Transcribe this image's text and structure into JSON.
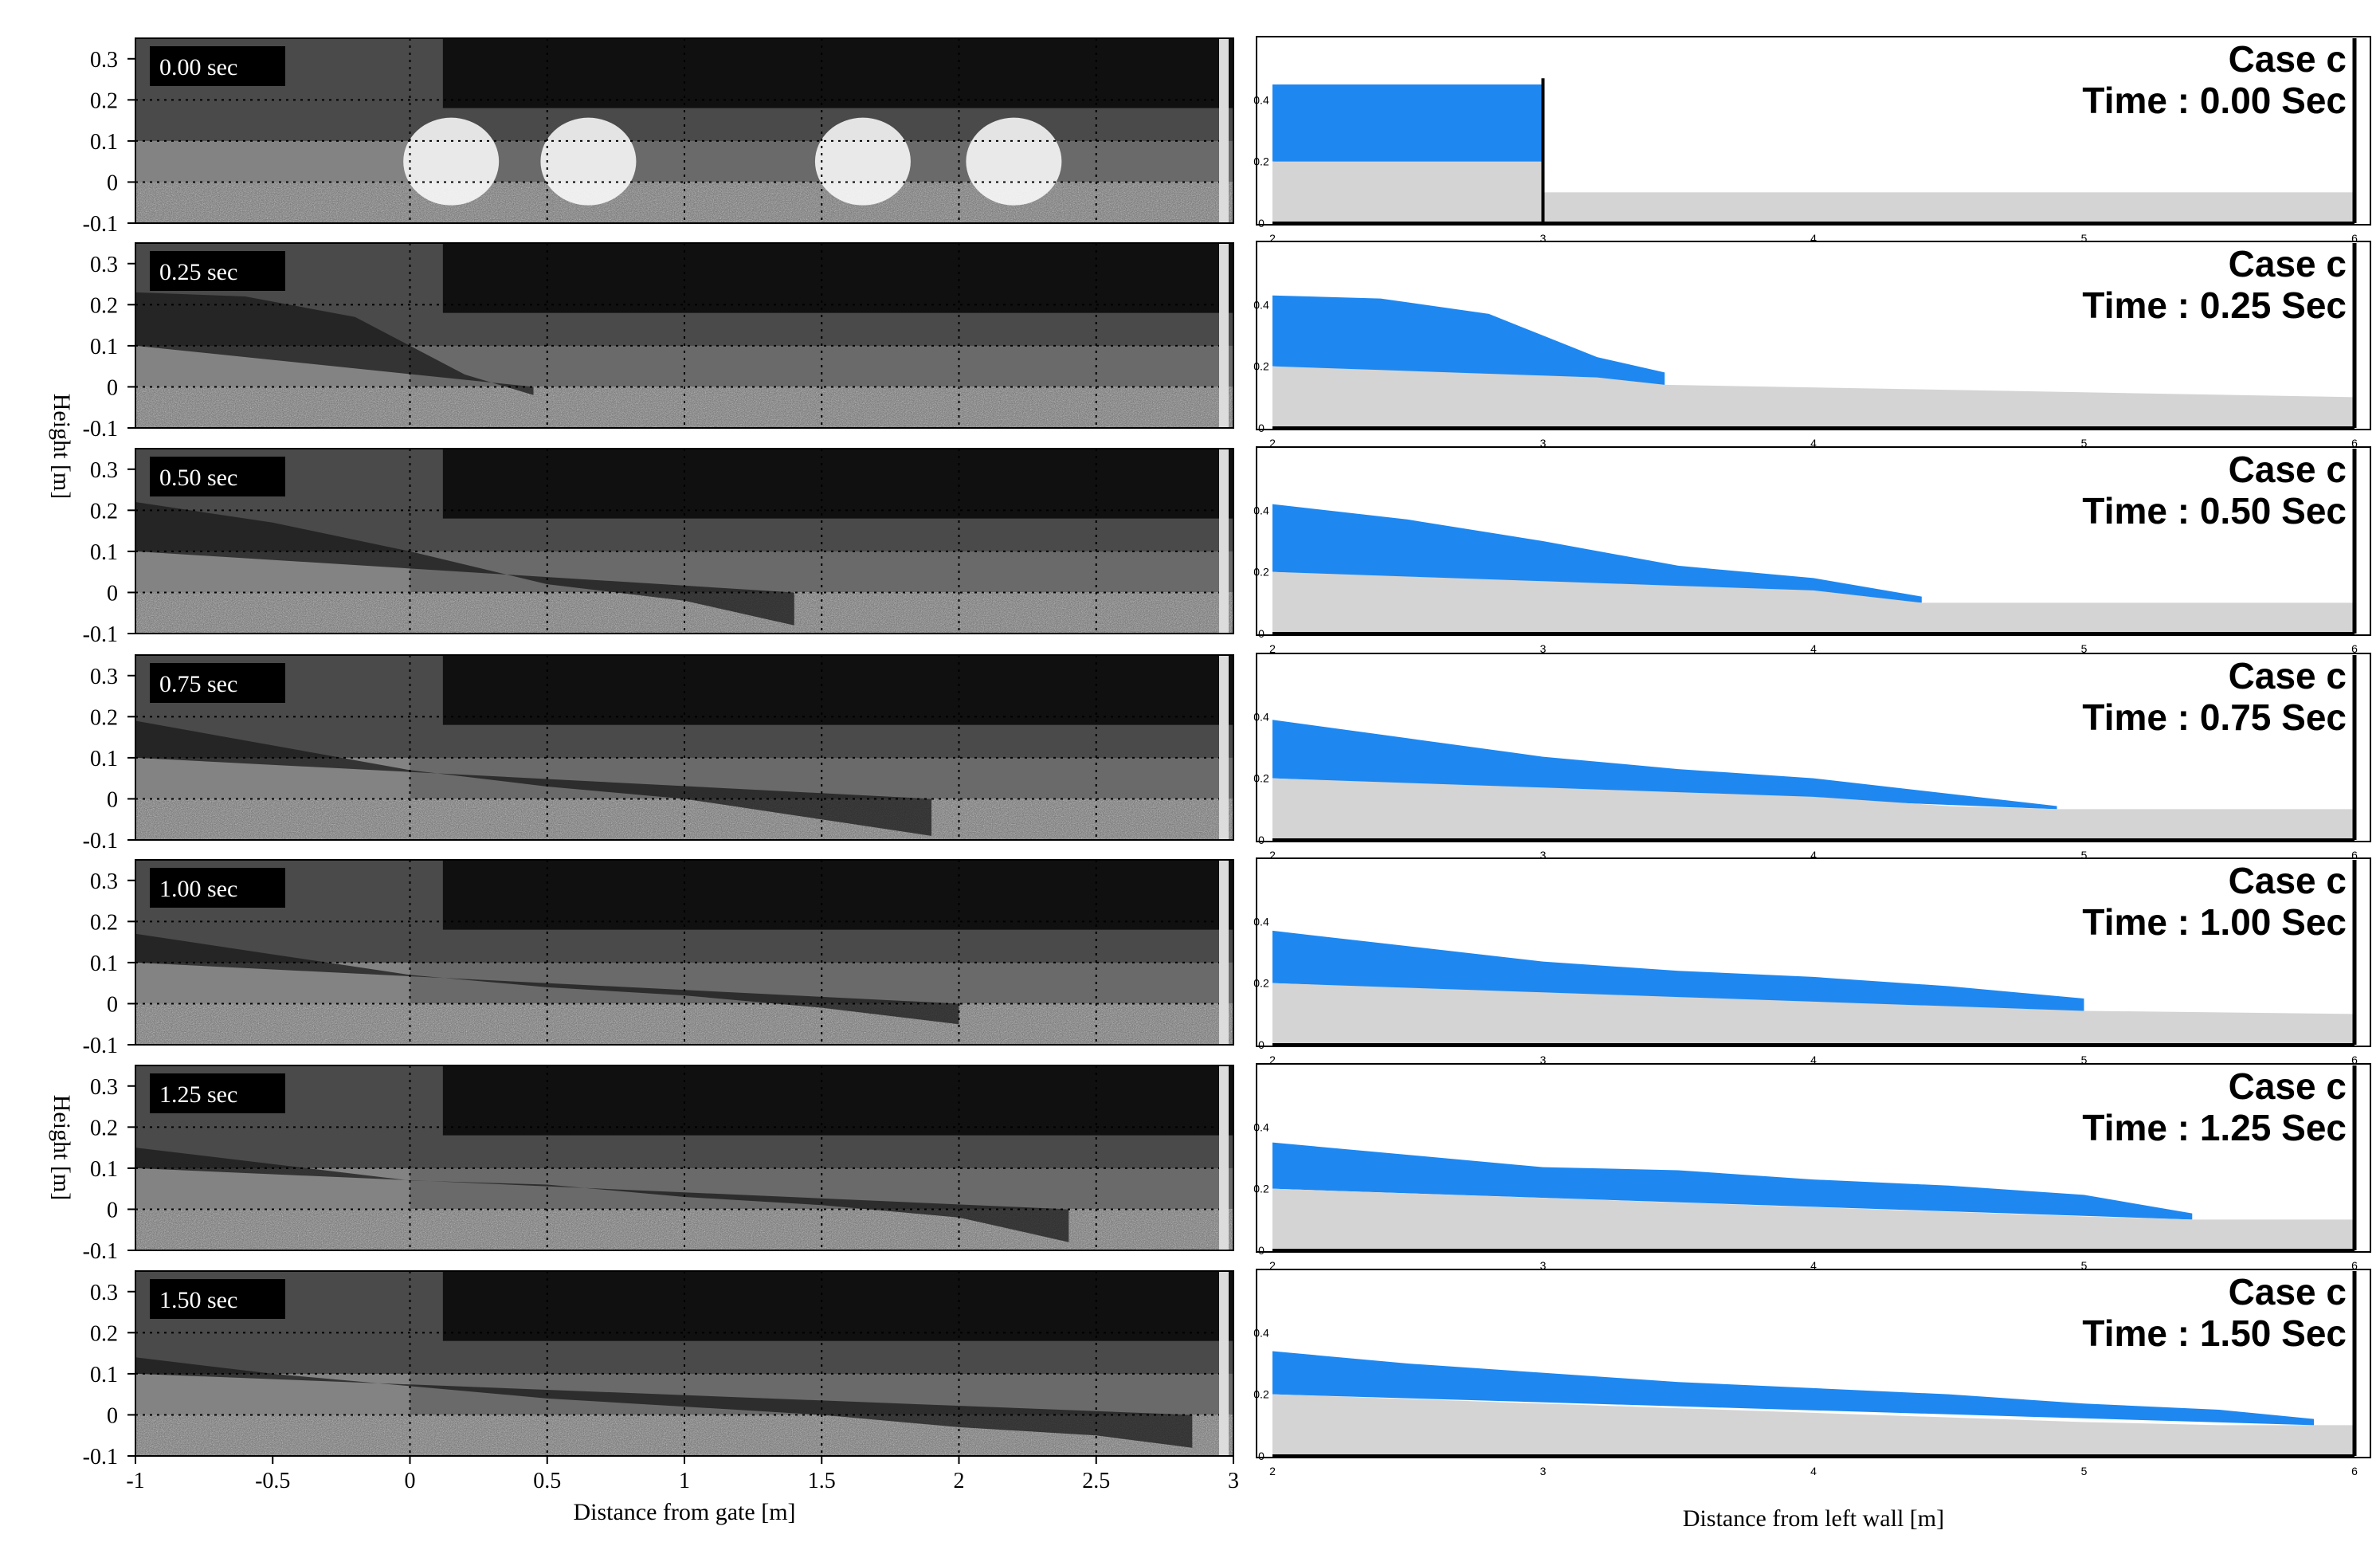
{
  "left_panel": {
    "ylabel": "Height [m]",
    "xlabel": "Distance from gate [m]",
    "yticks": [
      "0.3",
      "0.2",
      "0.1",
      "0",
      "-0.1"
    ],
    "xticks": [
      "-1",
      "-0.5",
      "0",
      "0.5",
      "1",
      "1.5",
      "2",
      "2.5",
      "3"
    ],
    "frames": [
      "0.00 sec",
      "0.25 sec",
      "0.50 sec",
      "0.75 sec",
      "1.00 sec",
      "1.25 sec",
      "1.50 sec"
    ]
  },
  "right_panel": {
    "xlabel": "Distance from left wall [m]",
    "xticks": [
      "2",
      "3",
      "4",
      "5",
      "6"
    ],
    "case_label": "Case c",
    "time_labels": [
      "Time : 0.00 Sec",
      "Time : 0.25 Sec",
      "Time : 0.50 Sec",
      "Time : 0.75 Sec",
      "Time : 1.00 Sec",
      "Time : 1.25 Sec",
      "Time : 1.50 Sec"
    ]
  },
  "colors": {
    "water": "#1e88f0",
    "sand": "#d4d4d4",
    "photo_dark": "#101010"
  },
  "chart_data": [
    {
      "type": "line",
      "description_scope": "numerical simulation panels (right column), free-surface height vs distance",
      "x_unit": "m",
      "y_unit": "m",
      "xlim": [
        2,
        6
      ],
      "ylim": [
        0,
        0.6
      ],
      "sand_bed_height": 0.2,
      "downstream_bed_height": 0.1,
      "series": [
        {
          "time": "0.00",
          "x": [
            2.0,
            3.0,
            3.0
          ],
          "y": [
            0.45,
            0.45,
            0.2
          ]
        },
        {
          "time": "0.25",
          "x": [
            2.0,
            2.4,
            2.8,
            3.0,
            3.2,
            3.45
          ],
          "y": [
            0.43,
            0.42,
            0.37,
            0.3,
            0.23,
            0.18
          ]
        },
        {
          "time": "0.50",
          "x": [
            2.0,
            2.5,
            3.0,
            3.5,
            4.0,
            4.4
          ],
          "y": [
            0.42,
            0.37,
            0.3,
            0.22,
            0.18,
            0.12
          ]
        },
        {
          "time": "0.75",
          "x": [
            2.0,
            2.5,
            3.0,
            3.5,
            4.0,
            4.5,
            4.9
          ],
          "y": [
            0.39,
            0.33,
            0.27,
            0.23,
            0.2,
            0.15,
            0.11
          ]
        },
        {
          "time": "1.00",
          "x": [
            2.0,
            2.5,
            3.0,
            3.5,
            4.0,
            4.5,
            5.0
          ],
          "y": [
            0.37,
            0.32,
            0.27,
            0.24,
            0.22,
            0.19,
            0.15
          ]
        },
        {
          "time": "1.25",
          "x": [
            2.0,
            2.5,
            3.0,
            3.5,
            4.0,
            4.5,
            5.0,
            5.4
          ],
          "y": [
            0.35,
            0.31,
            0.27,
            0.26,
            0.23,
            0.21,
            0.18,
            0.12
          ]
        },
        {
          "time": "1.50",
          "x": [
            2.0,
            2.5,
            3.0,
            3.5,
            4.0,
            4.5,
            5.0,
            5.5,
            5.85
          ],
          "y": [
            0.34,
            0.3,
            0.27,
            0.24,
            0.22,
            0.2,
            0.17,
            0.15,
            0.12
          ]
        }
      ]
    }
  ]
}
